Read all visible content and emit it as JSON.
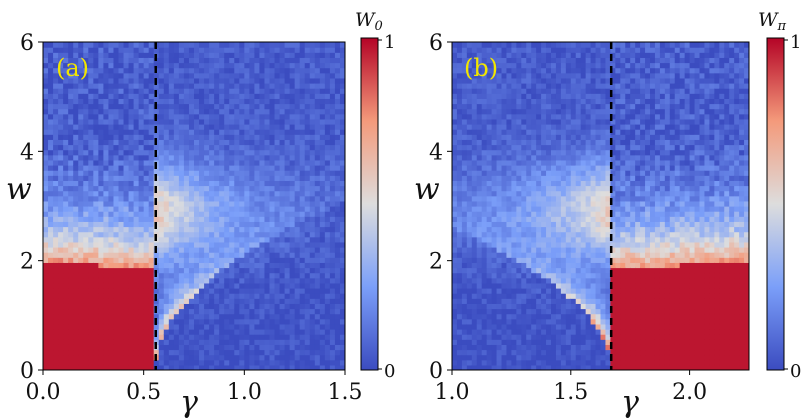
{
  "colors": {
    "low": "#3b4cc0",
    "mid": "#dddddd",
    "high": "#b40426",
    "line": "#000000",
    "panel_label": "#f2e600"
  },
  "chart_data": [
    {
      "type": "heatmap",
      "panel_label": "(a)",
      "xlabel": "γ",
      "ylabel": "w",
      "colorbar_label_base": "W",
      "colorbar_label_sub": "0",
      "colorbar_ticks": [
        "0",
        "1"
      ],
      "value_range": [
        0,
        1
      ],
      "xlim": [
        0.0,
        1.5
      ],
      "ylim": [
        0,
        6
      ],
      "xticks": [
        0.0,
        0.5,
        1.0,
        1.5
      ],
      "xtick_labels": [
        "0.0",
        "0.5",
        "1.0",
        "1.5"
      ],
      "yticks": [
        0,
        2,
        4,
        6
      ],
      "ytick_labels": [
        "0",
        "2",
        "4",
        "6"
      ],
      "critical_gamma": 0.56,
      "high_side": "left"
    },
    {
      "type": "heatmap",
      "panel_label": "(b)",
      "xlabel": "γ",
      "ylabel": "w",
      "colorbar_label_base": "W",
      "colorbar_label_sub": "π",
      "colorbar_ticks": [
        "0",
        "1"
      ],
      "value_range": [
        0,
        1
      ],
      "xlim": [
        1.0,
        2.25
      ],
      "ylim": [
        0,
        6
      ],
      "xticks": [
        1.0,
        1.5,
        2.0
      ],
      "xtick_labels": [
        "1.0",
        "1.5",
        "2.0"
      ],
      "yticks": [
        0,
        2,
        4,
        6
      ],
      "ytick_labels": [
        "0",
        "2",
        "4",
        "6"
      ],
      "critical_gamma": 1.67,
      "high_side": "right"
    }
  ]
}
